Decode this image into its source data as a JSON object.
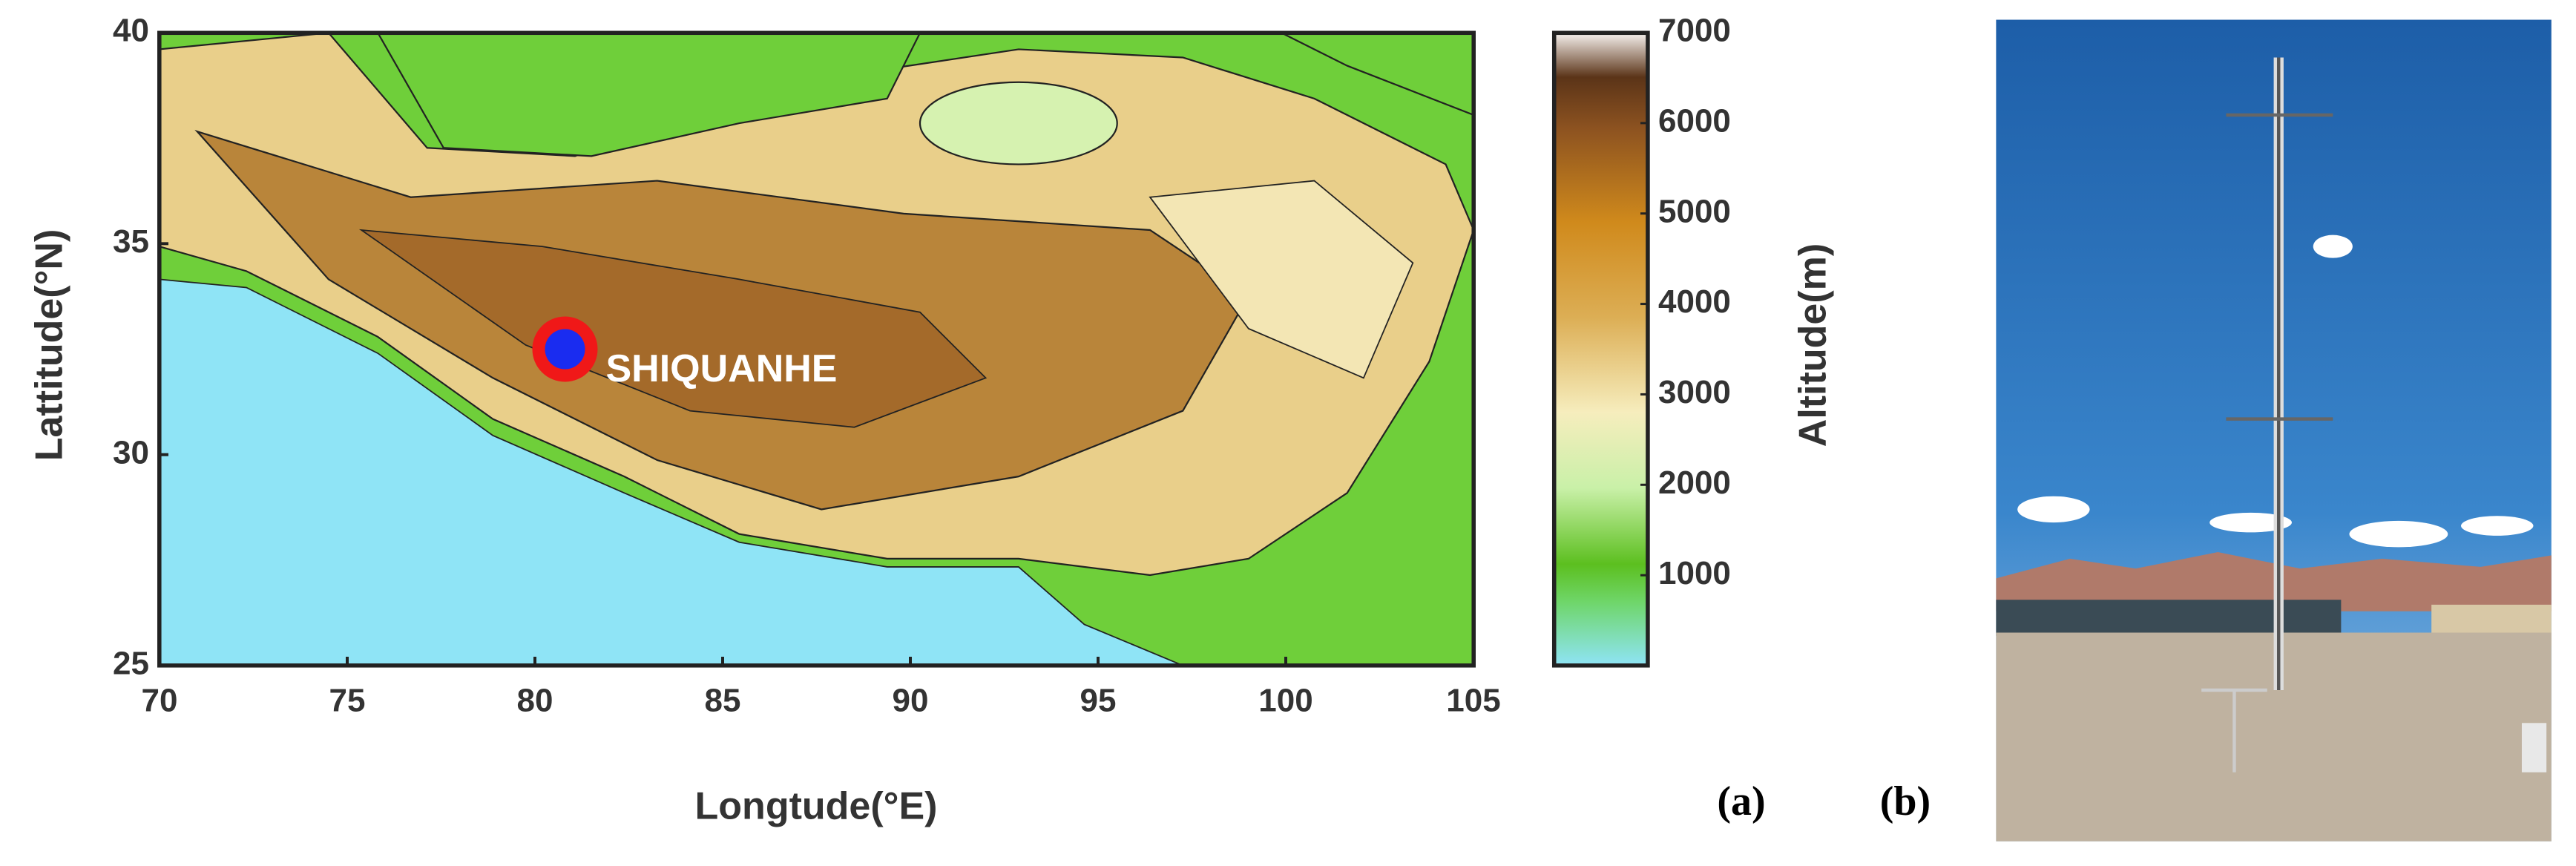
{
  "map": {
    "xlabel": "Longtude(°E)",
    "ylabel": "Lattitude(°N)",
    "xlim": [
      70,
      105
    ],
    "ylim": [
      25,
      40
    ],
    "xticks": [
      70,
      75,
      80,
      85,
      90,
      95,
      100,
      105
    ],
    "yticks": [
      25,
      30,
      35,
      40
    ],
    "station": {
      "name": "SHIQUANHE",
      "lon": 80.8,
      "lat": 32.5
    },
    "colorbar": {
      "label": "Altitude(m)",
      "lim": [
        0,
        7000
      ],
      "ticks": [
        1000,
        2000,
        3000,
        4000,
        5000,
        6000,
        7000
      ]
    }
  },
  "panels": {
    "a": "(a)",
    "b": "(b)"
  }
}
